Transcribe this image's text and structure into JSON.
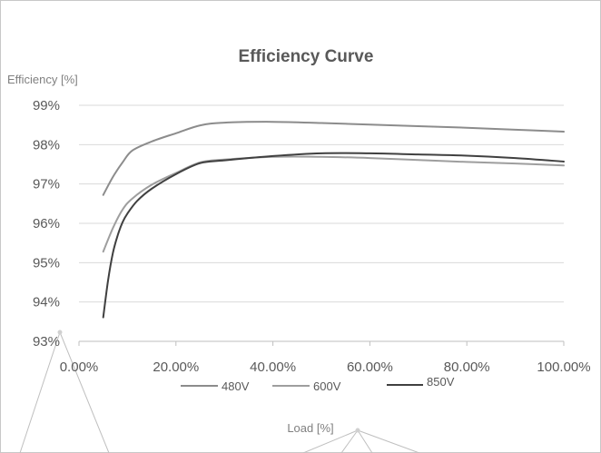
{
  "chart_data": {
    "type": "line",
    "title": "Efficiency Curve",
    "ylabel": "Efficiency [%]",
    "xlabel": "Load [%]",
    "xlim": [
      0,
      1
    ],
    "ylim": [
      0.93,
      0.99
    ],
    "x_ticks": [
      0,
      0.2,
      0.4,
      0.6,
      0.8,
      1.0
    ],
    "x_tick_labels": [
      "0.00%",
      "20.00%",
      "40.00%",
      "60.00%",
      "80.00%",
      "100.00%"
    ],
    "y_ticks": [
      0.93,
      0.94,
      0.95,
      0.96,
      0.97,
      0.98,
      0.99
    ],
    "y_tick_labels": [
      "93%",
      "94%",
      "95%",
      "96%",
      "97%",
      "98%",
      "99%"
    ],
    "grid": "horizontal",
    "legend_position": "bottom",
    "series": [
      {
        "name": "480V",
        "color": "#8c8c8c",
        "x": [
          0.05,
          0.07,
          0.09,
          0.11,
          0.15,
          0.2,
          0.25,
          0.3,
          0.4,
          0.5,
          0.6,
          0.7,
          0.8,
          0.9,
          1.0
        ],
        "y": [
          0.9672,
          0.9718,
          0.9755,
          0.9785,
          0.9808,
          0.9829,
          0.9849,
          0.9856,
          0.9858,
          0.9855,
          0.9851,
          0.9847,
          0.9843,
          0.9838,
          0.9833
        ]
      },
      {
        "name": "600V",
        "color": "#9e9e9e",
        "x": [
          0.05,
          0.07,
          0.09,
          0.11,
          0.15,
          0.2,
          0.25,
          0.3,
          0.4,
          0.5,
          0.6,
          0.7,
          0.8,
          0.9,
          1.0
        ],
        "y": [
          0.9528,
          0.9588,
          0.9635,
          0.9663,
          0.9698,
          0.9728,
          0.9755,
          0.9762,
          0.9769,
          0.9769,
          0.9766,
          0.9761,
          0.9756,
          0.9752,
          0.9747
        ]
      },
      {
        "name": "850V",
        "color": "#404040",
        "x": [
          0.05,
          0.06,
          0.07,
          0.08,
          0.09,
          0.1,
          0.12,
          0.15,
          0.2,
          0.25,
          0.3,
          0.4,
          0.5,
          0.6,
          0.7,
          0.8,
          0.9,
          1.0
        ],
        "y": [
          0.9361,
          0.9455,
          0.9525,
          0.957,
          0.9603,
          0.9625,
          0.9657,
          0.9688,
          0.9725,
          0.9753,
          0.976,
          0.9771,
          0.9778,
          0.9778,
          0.9775,
          0.9772,
          0.9766,
          0.9757
        ]
      }
    ]
  }
}
